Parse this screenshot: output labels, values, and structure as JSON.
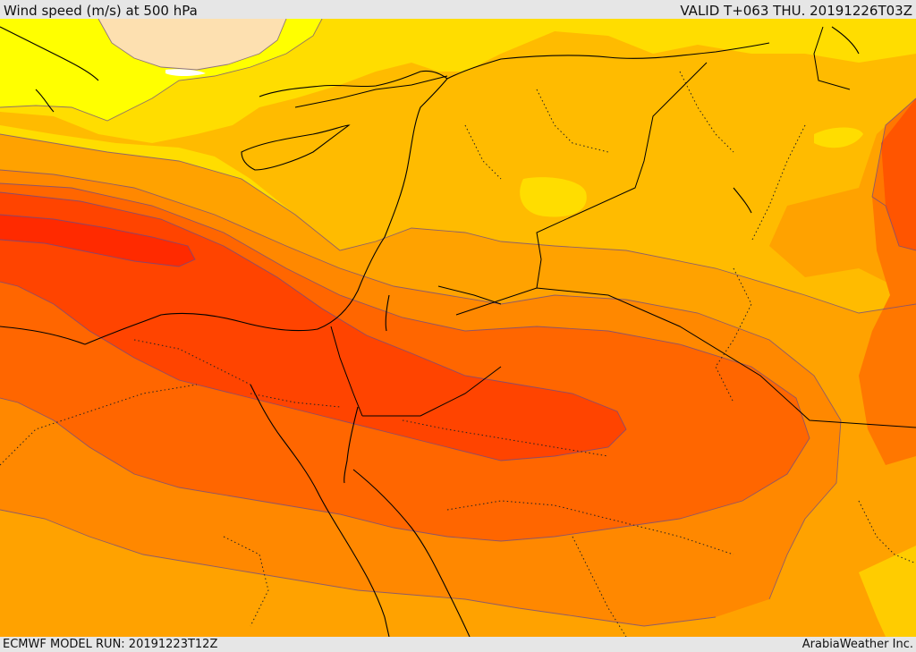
{
  "header": {
    "title": "Wind speed (m/s) at 500 hPa",
    "valid": "VALID T+063 THU. 20191226T03Z"
  },
  "footer": {
    "model_run": "ECMWF MODEL RUN: 20191223T12Z",
    "credit": "ArabiaWeather Inc."
  },
  "colors": {
    "bands": [
      "#fde0b0",
      "#ffff00",
      "#ffdd00",
      "#ffbb00",
      "#ffa200",
      "#ff8800",
      "#ff6600",
      "#ff4400",
      "#ff2a00"
    ]
  }
}
